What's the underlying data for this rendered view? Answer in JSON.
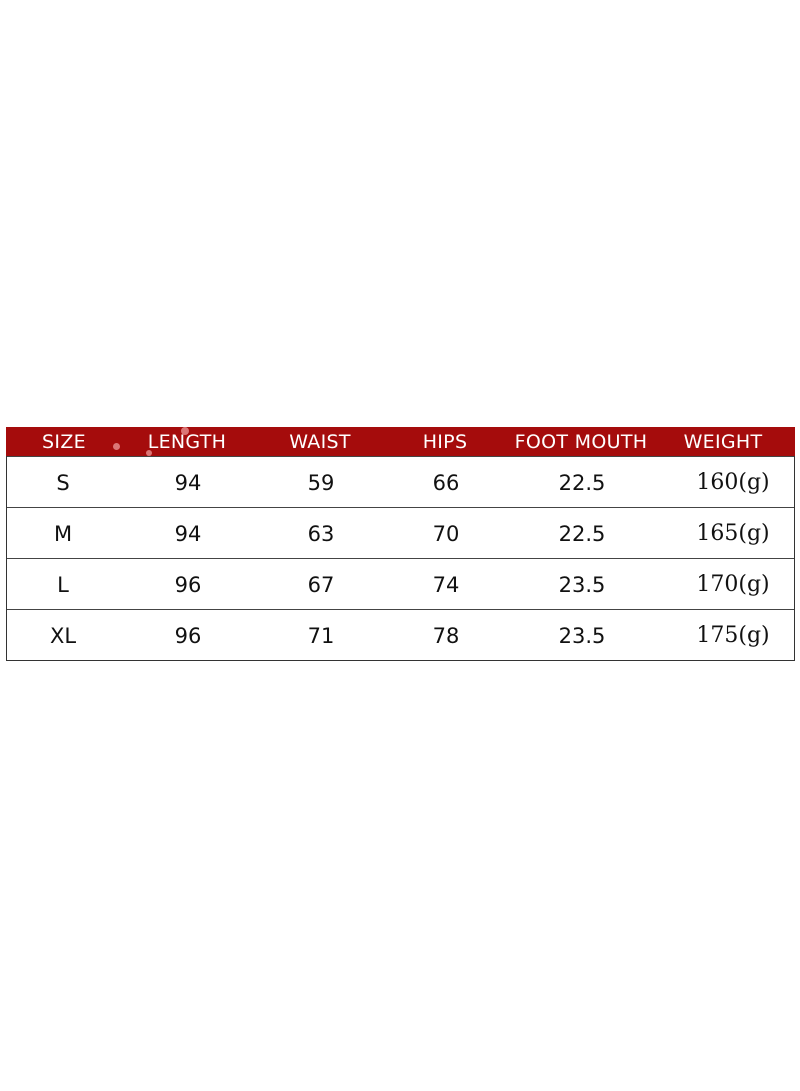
{
  "table": {
    "header_color": "#a50c0c",
    "columns": [
      "SIZE",
      "LENGTH",
      "WAIST",
      "HIPS",
      "FOOT MOUTH",
      "WEIGHT"
    ],
    "rows": [
      [
        "S",
        "94",
        "59",
        "66",
        "22.5",
        "160(g)"
      ],
      [
        "M",
        "94",
        "63",
        "70",
        "22.5",
        "165(g)"
      ],
      [
        "L",
        "96",
        "67",
        "74",
        "23.5",
        "170(g)"
      ],
      [
        "XL",
        "96",
        "71",
        "78",
        "23.5",
        "175(g)"
      ]
    ]
  }
}
